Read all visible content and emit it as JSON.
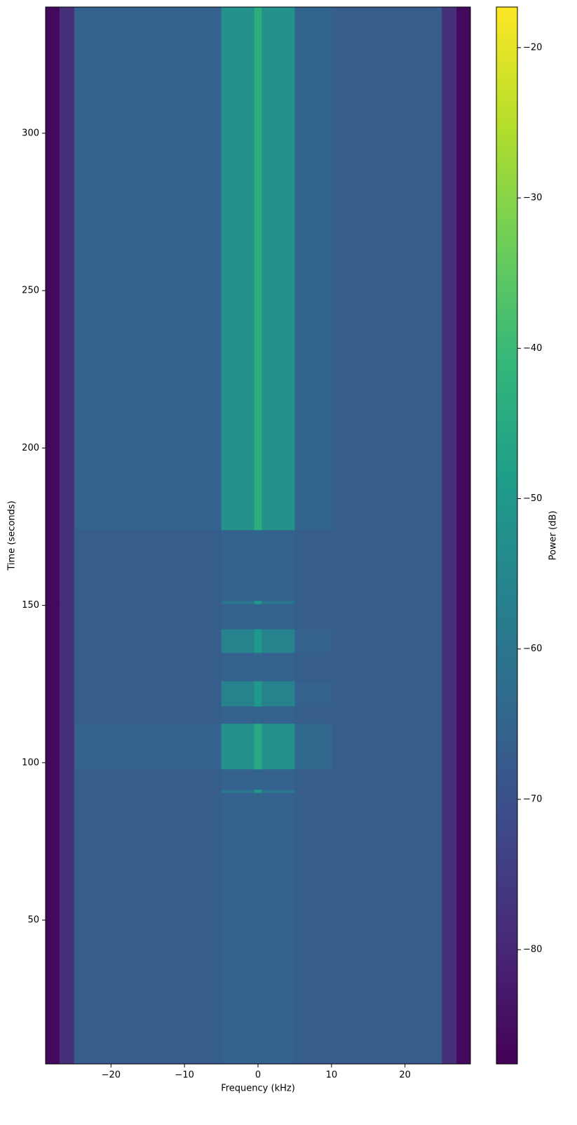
{
  "chart_data": {
    "type": "heatmap",
    "x_label": "Frequency (kHz)",
    "y_label": "Time (seconds)",
    "colorbar_label": "Power (dB)",
    "colormap": "viridis",
    "x_edges": [
      -28.9,
      -27,
      -25,
      -5,
      -0.5,
      0.5,
      5,
      10,
      25,
      27,
      28.9
    ],
    "y_edges": [
      4.3,
      90.5,
      91.5,
      98,
      112.5,
      118,
      126,
      135,
      142.5,
      150.5,
      151.5,
      174,
      340.1
    ],
    "z": [
      [
        -86,
        -78,
        -67,
        -66,
        -65,
        -66,
        -67,
        -67,
        -78,
        -86
      ],
      [
        -86,
        -78,
        -67,
        -60,
        -50,
        -60,
        -67,
        -67,
        -78,
        -86
      ],
      [
        -86,
        -78,
        -67,
        -66,
        -65,
        -66,
        -67,
        -67,
        -78,
        -86
      ],
      [
        -86,
        -78,
        -66,
        -52,
        -45,
        -52,
        -64,
        -67,
        -78,
        -86
      ],
      [
        -86,
        -78,
        -67,
        -66,
        -65,
        -66,
        -67,
        -67,
        -78,
        -86
      ],
      [
        -86,
        -78,
        -67,
        -56,
        -50,
        -56,
        -66,
        -67,
        -78,
        -86
      ],
      [
        -86,
        -78,
        -67,
        -66,
        -65,
        -66,
        -67,
        -67,
        -78,
        -86
      ],
      [
        -86,
        -78,
        -67,
        -56,
        -50,
        -56,
        -66,
        -67,
        -78,
        -86
      ],
      [
        -86,
        -78,
        -67,
        -66,
        -65,
        -66,
        -67,
        -67,
        -78,
        -86
      ],
      [
        -86,
        -78,
        -67,
        -60,
        -50,
        -60,
        -67,
        -67,
        -78,
        -86
      ],
      [
        -86,
        -78,
        -67,
        -66,
        -65,
        -66,
        -67,
        -67,
        -78,
        -86
      ],
      [
        -86,
        -78,
        -66,
        -52,
        -44,
        -52,
        -65,
        -67,
        -78,
        -86
      ]
    ],
    "xlim": [
      -28.9,
      28.9
    ],
    "ylim": [
      4.3,
      340.1
    ],
    "xticks": [
      {
        "value": -20,
        "label": "−20"
      },
      {
        "value": -10,
        "label": "−10"
      },
      0,
      10,
      20
    ],
    "yticks": [
      50,
      100,
      150,
      200,
      250,
      300
    ],
    "clim": [
      -87.6,
      -17.3
    ],
    "cticks": [
      {
        "value": -20,
        "label": "−20"
      },
      {
        "value": -30,
        "label": "−30"
      },
      {
        "value": -40,
        "label": "−40"
      },
      {
        "value": -50,
        "label": "−50"
      },
      {
        "value": -60,
        "label": "−60"
      },
      {
        "value": -70,
        "label": "−70"
      },
      {
        "value": -80,
        "label": "−80"
      }
    ]
  }
}
